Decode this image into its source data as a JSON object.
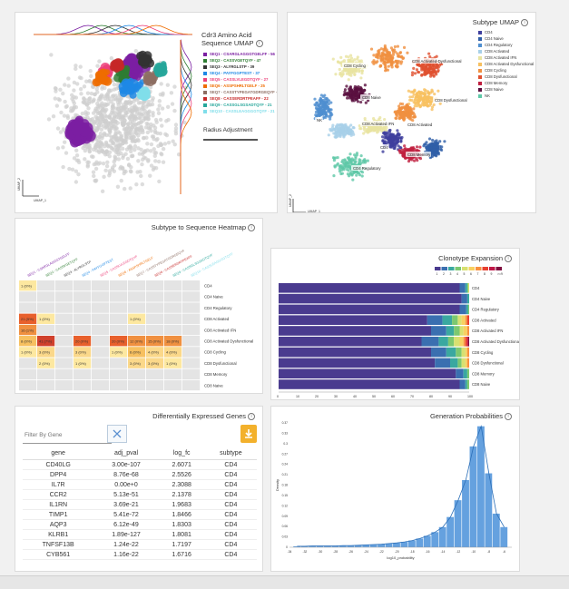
{
  "umap_panel": {
    "title_lines": [
      "Cdr3 Amino Acid",
      "Sequence UMAP"
    ],
    "sequences": [
      {
        "label": "SEQ1 - CSARGLAGGGTGELFF - 56",
        "color": "#7b1fa2"
      },
      {
        "label": "SEQ2 - CASSVGETQYF - 47",
        "color": "#2e7d32"
      },
      {
        "label": "SEQ3 - ALYRGLSTP - 39",
        "color": "#333333"
      },
      {
        "label": "SEQ4 - PAYFGGPTEST - 37",
        "color": "#1e88e5"
      },
      {
        "label": "SEQ5 - CASSLVLEGDTQYF - 27",
        "color": "#ec407a"
      },
      {
        "label": "SEQ6 - ASSPSHRLTGELF - 25",
        "color": "#ef6c00"
      },
      {
        "label": "SEQ7 - CASSTYPEGATGDRGEQYF - 23",
        "color": "#8d6e63"
      },
      {
        "label": "SEQ8 - CASSERDRTPEAFF - 22",
        "color": "#c62828"
      },
      {
        "label": "SEQ9 - CASSGLSGSADTQYF - 21",
        "color": "#26a69a"
      },
      {
        "label": "SEQ10 - CASSLEAGGGGTQYF - 21",
        "color": "#80deea"
      }
    ],
    "radius_label": "Radius Adjustment",
    "axis_y": "UMAP_2",
    "axis_x": "UMAP_1"
  },
  "subtype_umap": {
    "title": "Subtype UMAP",
    "legend": [
      {
        "label": "CD4",
        "color": "#3f3f9e"
      },
      {
        "label": "CD4 Naive",
        "color": "#2f5fa8"
      },
      {
        "label": "CD4 Regulatory",
        "color": "#4f8fd0"
      },
      {
        "label": "CD8 Activated",
        "color": "#a8d0e8"
      },
      {
        "label": "CD8 Activated IFN",
        "color": "#e8e4a0"
      },
      {
        "label": "CD8 Activated Dysfunctional",
        "color": "#f7c060"
      },
      {
        "label": "CD8 Cycling",
        "color": "#f09040"
      },
      {
        "label": "CD8 Dysfunctional",
        "color": "#e05030"
      },
      {
        "label": "CD8 Memory",
        "color": "#c02040"
      },
      {
        "label": "CD8 Naive",
        "color": "#5a1040"
      },
      {
        "label": "NK",
        "color": "#5fc8a8"
      }
    ],
    "cluster_labels": [
      "CD8 Cycling",
      "CD8 Activated-Dysfunctional",
      "CD8 Naive",
      "CD8 Dysfunctional",
      "NK",
      "CD8 Activated IFN",
      "CD8 Activated",
      "CD4",
      "CD8 Memory",
      "CD4 Regulatory"
    ],
    "axis_y": "UMAP_2",
    "axis_x": "UMAP_1"
  },
  "heatmap": {
    "title": "Subtype to Sequence Heatmap",
    "columns": [
      {
        "label": "SEQ1 - CSARGLAGGGTGELFF",
        "color": "#7b1fa2"
      },
      {
        "label": "SEQ2 - CASSVGETQYF",
        "color": "#2e7d32"
      },
      {
        "label": "SEQ3 - ALYRGLSTP",
        "color": "#333333"
      },
      {
        "label": "SEQ4 - PAYFGGPTEST",
        "color": "#1e88e5"
      },
      {
        "label": "SEQ5 - CASSLVLEGDTQYF",
        "color": "#ec407a"
      },
      {
        "label": "SEQ6 - ASSPSHRLTGELF",
        "color": "#ef6c00"
      },
      {
        "label": "SEQ7 - CASSTYPEGATGDRGEQYF",
        "color": "#8d6e63"
      },
      {
        "label": "SEQ8 - CASSERDRTPEAFF",
        "color": "#c62828"
      },
      {
        "label": "SEQ9 - CASSGLSGSADTQYF",
        "color": "#26a69a"
      },
      {
        "label": "SEQ10 - CASSLEAGGGGTQYF",
        "color": "#80deea"
      }
    ],
    "rows": [
      {
        "label": "CD4",
        "cells": [
          [
            "1 (0%)",
            "#fde8a0"
          ],
          null,
          null,
          null,
          null,
          null,
          null,
          null,
          null,
          null
        ]
      },
      {
        "label": "CD4 Naive",
        "cells": [
          null,
          null,
          null,
          null,
          null,
          null,
          null,
          null,
          null,
          null
        ]
      },
      {
        "label": "CD4 Regulatory",
        "cells": [
          null,
          null,
          null,
          null,
          null,
          null,
          null,
          null,
          null,
          null
        ]
      },
      {
        "label": "CD8 Activated",
        "cells": [
          [
            "21 (5%)",
            "#e8602c"
          ],
          [
            "1 (0%)",
            "#fde8a0"
          ],
          null,
          null,
          null,
          null,
          [
            "1 (0%)",
            "#fde8a0"
          ],
          null,
          null,
          null
        ]
      },
      {
        "label": "CD8 Activated IFN",
        "cells": [
          [
            "16 (1%)",
            "#f09040"
          ],
          null,
          null,
          null,
          null,
          null,
          null,
          null,
          null,
          null
        ]
      },
      {
        "label": "CD8 Activated Dysfunctional",
        "cells": [
          [
            "8 (0%)",
            "#f7c060"
          ],
          [
            "41 (7%)",
            "#d0402c"
          ],
          null,
          [
            "20 (0%)",
            "#e8602c"
          ],
          null,
          [
            "20 (0%)",
            "#e8602c"
          ],
          [
            "12 (0%)",
            "#f09040"
          ],
          [
            "15 (0%)",
            "#f09040"
          ],
          [
            "18 (0%)",
            "#f09040"
          ],
          null
        ]
      },
      {
        "label": "CD8 Cycling",
        "cells": [
          [
            "1 (0%)",
            "#fde8a0"
          ],
          [
            "3 (0%)",
            "#fbd88a"
          ],
          null,
          [
            "3 (0%)",
            "#fbd88a"
          ],
          null,
          [
            "1 (0%)",
            "#fde8a0"
          ],
          [
            "6 (0%)",
            "#f7c060"
          ],
          [
            "4 (0%)",
            "#fbd88a"
          ],
          [
            "4 (0%)",
            "#fbd88a"
          ],
          null
        ]
      },
      {
        "label": "CD8 Dysfunctional",
        "cells": [
          null,
          [
            "2 (0%)",
            "#fde8a0"
          ],
          null,
          [
            "1 (0%)",
            "#fde8a0"
          ],
          null,
          null,
          [
            "3 (0%)",
            "#fbd88a"
          ],
          [
            "3 (0%)",
            "#fbd88a"
          ],
          [
            "1 (0%)",
            "#fde8a0"
          ],
          null
        ]
      },
      {
        "label": "CD8 Memory",
        "cells": [
          null,
          null,
          null,
          null,
          null,
          null,
          null,
          null,
          null,
          null
        ]
      },
      {
        "label": "CD8 Naive",
        "cells": [
          null,
          null,
          null,
          null,
          null,
          null,
          null,
          null,
          null,
          null
        ]
      }
    ]
  },
  "clonotype": {
    "title": "Clonotype Expansion",
    "legend": [
      {
        "label": "1",
        "color": "#4a3b8f"
      },
      {
        "label": "2",
        "color": "#3a6fb0"
      },
      {
        "label": "3",
        "color": "#3aa8a0"
      },
      {
        "label": "4",
        "color": "#7cc870"
      },
      {
        "label": "5",
        "color": "#d8e070"
      },
      {
        "label": "6",
        "color": "#f8d060"
      },
      {
        "label": "7",
        "color": "#f89040"
      },
      {
        "label": "8",
        "color": "#e84030"
      },
      {
        "label": "9",
        "color": "#c01848"
      },
      {
        "label": ">=9",
        "color": "#801040"
      }
    ],
    "rows": [
      {
        "label": "CD4",
        "values": [
          0.95,
          0.03,
          0.01,
          0.005,
          0.005,
          0,
          0,
          0,
          0,
          0
        ]
      },
      {
        "label": "CD4 Naive",
        "values": [
          0.96,
          0.03,
          0.01,
          0,
          0,
          0,
          0,
          0,
          0,
          0
        ]
      },
      {
        "label": "CD4 Regulatory",
        "values": [
          0.95,
          0.035,
          0.01,
          0.005,
          0,
          0,
          0,
          0,
          0,
          0
        ]
      },
      {
        "label": "CD8 Activated",
        "values": [
          0.78,
          0.08,
          0.05,
          0.03,
          0.02,
          0.02,
          0.01,
          0.01,
          0,
          0
        ]
      },
      {
        "label": "CD8 Activated IFN",
        "values": [
          0.8,
          0.08,
          0.04,
          0.03,
          0.02,
          0.02,
          0.01,
          0,
          0,
          0
        ]
      },
      {
        "label": "CD8 Activated Dysfunctional",
        "values": [
          0.75,
          0.09,
          0.05,
          0.03,
          0.03,
          0.02,
          0.01,
          0.01,
          0.005,
          0.005
        ]
      },
      {
        "label": "CD8 Cycling",
        "values": [
          0.8,
          0.08,
          0.05,
          0.03,
          0.02,
          0.01,
          0.01,
          0,
          0,
          0
        ]
      },
      {
        "label": "CD8 Dysfunctional",
        "values": [
          0.82,
          0.08,
          0.04,
          0.02,
          0.02,
          0.01,
          0.01,
          0,
          0,
          0
        ]
      },
      {
        "label": "CD8 Memory",
        "values": [
          0.93,
          0.04,
          0.02,
          0.01,
          0,
          0,
          0,
          0,
          0,
          0
        ]
      },
      {
        "label": "CD8 Naive",
        "values": [
          0.95,
          0.03,
          0.01,
          0.01,
          0,
          0,
          0,
          0,
          0,
          0
        ]
      }
    ],
    "x_ticks": [
      "0",
      "10",
      "20",
      "30",
      "40",
      "50",
      "60",
      "70",
      "80",
      "90",
      "100"
    ]
  },
  "deg": {
    "title": "Differentially Expressed Genes",
    "filter_placeholder": "Filter By Gene",
    "clear_icon": "close-icon",
    "download_icon": "download-icon",
    "headers": [
      "gene",
      "adj_pval",
      "log_fc",
      "subtype"
    ],
    "rows": [
      [
        "CD40LG",
        "3.00e-107",
        "2.6071",
        "CD4"
      ],
      [
        "DPP4",
        "8.76e-68",
        "2.5526",
        "CD4"
      ],
      [
        "IL7R",
        "0.00e+0",
        "2.3088",
        "CD4"
      ],
      [
        "CCR2",
        "5.13e-51",
        "2.1378",
        "CD4"
      ],
      [
        "IL1RN",
        "3.69e-21",
        "1.9683",
        "CD4"
      ],
      [
        "TIMP1",
        "5.41e-72",
        "1.8466",
        "CD4"
      ],
      [
        "AQP3",
        "6.12e-49",
        "1.8303",
        "CD4"
      ],
      [
        "KLRB1",
        "1.89e-127",
        "1.8081",
        "CD4"
      ],
      [
        "TNFSF13B",
        "1.24e-22",
        "1.7197",
        "CD4"
      ],
      [
        "CYB561",
        "1.16e-22",
        "1.6716",
        "CD4"
      ]
    ]
  },
  "gen_prob": {
    "title": "Generation Probabilities",
    "ylabel": "Density",
    "xlabel": "log10_probability",
    "bar_color": "#4a90d9",
    "y_ticks": [
      "0",
      "0.03",
      "0.06",
      "0.09",
      "0.12",
      "0.15",
      "0.18",
      "0.21",
      "0.24",
      "0.27",
      "0.3",
      "0.33",
      "0.37"
    ],
    "x_ticks": [
      "-34",
      "-32",
      "-30",
      "-28",
      "-26",
      "-24",
      "-22",
      "-20",
      "-18",
      "-16",
      "-14",
      "-12",
      "-10",
      "-8",
      "-6"
    ]
  },
  "chart_data": [
    {
      "type": "bar",
      "title": "Generation Probabilities",
      "xlabel": "log10_probability",
      "ylabel": "Density",
      "x": [
        -33,
        -32,
        -31,
        -30,
        -29,
        -28,
        -27,
        -26,
        -25,
        -24,
        -23,
        -22,
        -21,
        -20,
        -19,
        -18,
        -17,
        -16,
        -15,
        -14,
        -13,
        -12,
        -11,
        -10,
        -9,
        -8,
        -7,
        -6
      ],
      "values": [
        0.003,
        0.003,
        0.004,
        0.004,
        0.004,
        0.004,
        0.005,
        0.005,
        0.006,
        0.007,
        0.008,
        0.009,
        0.011,
        0.013,
        0.016,
        0.02,
        0.026,
        0.034,
        0.045,
        0.06,
        0.09,
        0.14,
        0.2,
        0.3,
        0.36,
        0.22,
        0.1,
        0.06
      ],
      "xlim": [
        -34,
        -5
      ],
      "ylim": [
        0,
        0.37
      ]
    },
    {
      "type": "bar",
      "title": "Clonotype Expansion",
      "orientation": "horizontal-stacked",
      "categories": [
        "CD4",
        "CD4 Naive",
        "CD4 Regulatory",
        "CD8 Activated",
        "CD8 Activated IFN",
        "CD8 Activated Dysfunctional",
        "CD8 Cycling",
        "CD8 Dysfunctional",
        "CD8 Memory",
        "CD8 Naive"
      ],
      "xlim": [
        0,
        100
      ]
    }
  ]
}
